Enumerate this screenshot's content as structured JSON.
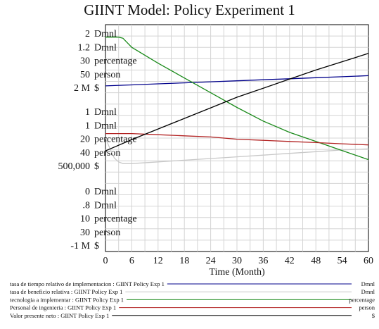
{
  "chart_data": {
    "type": "line",
    "title": "GIINT Model: Policy Experiment 1",
    "xlabel": "Time (Month)",
    "x_ticks": [
      0,
      6,
      12,
      18,
      24,
      30,
      36,
      42,
      48,
      54,
      60
    ],
    "xlim": [
      0,
      60
    ],
    "grid": true,
    "axes": [
      {
        "unit": "Dmnl",
        "tick_labels": [
          "2",
          "1",
          "0"
        ],
        "range": [
          0,
          2
        ]
      },
      {
        "unit": "Dmnl",
        "tick_labels": [
          "1.2",
          "1",
          ".8"
        ],
        "range": [
          0.8,
          1.2
        ]
      },
      {
        "unit": "percentage",
        "tick_labels": [
          "30",
          "20",
          "10"
        ],
        "range": [
          10,
          30
        ]
      },
      {
        "unit": "person",
        "tick_labels": [
          "50",
          "40",
          "30"
        ],
        "range": [
          30,
          50
        ]
      },
      {
        "unit": "$",
        "tick_labels": [
          "2 M",
          "500,000",
          "-1 M"
        ],
        "range": [
          -1000000,
          2000000
        ]
      }
    ],
    "series": [
      {
        "name": "tasa de tiempo relativo de implementacion : GIINT Policy Exp 1",
        "unit": "Dmnl",
        "axis": 0,
        "color": "#00008b",
        "x": [
          0,
          6,
          12,
          18,
          24,
          30,
          36,
          42,
          48,
          54,
          60
        ],
        "y": [
          1.46,
          1.469,
          1.478,
          1.487,
          1.496,
          1.505,
          1.514,
          1.523,
          1.532,
          1.541,
          1.55
        ]
      },
      {
        "name": "tasa de beneficio relativa : GIINT Policy Exp 1",
        "unit": "Dmnl",
        "axis": 1,
        "color": "#c8c8c8",
        "x": [
          0,
          1,
          2,
          3,
          4,
          6,
          12,
          18,
          24,
          30,
          36,
          42,
          48,
          54,
          60
        ],
        "y": [
          1.0,
          0.982,
          0.965,
          0.958,
          0.955,
          0.955,
          0.958,
          0.961,
          0.964,
          0.967,
          0.97,
          0.973,
          0.976,
          0.979,
          0.981
        ]
      },
      {
        "name": "tecnologia a implementar : GIINT Policy Exp 1",
        "unit": "percentage",
        "axis": 2,
        "color": "#1a8a1a",
        "x": [
          0,
          1,
          2,
          3,
          4,
          6,
          12,
          18,
          24,
          30,
          36,
          42,
          48,
          54,
          60
        ],
        "y": [
          28.9,
          28.9,
          28.9,
          28.9,
          28.8,
          28.0,
          26.6,
          25.3,
          24.0,
          22.7,
          21.5,
          20.5,
          19.7,
          18.9,
          18.1
        ]
      },
      {
        "name": "Personal de ingenieria : GIINT Policy Exp 1",
        "unit": "person",
        "axis": 3,
        "color": "#b22222",
        "x": [
          0,
          1,
          2,
          3,
          4,
          6,
          12,
          18,
          24,
          30,
          36,
          42,
          48,
          54,
          60
        ],
        "y": [
          40.4,
          40.4,
          40.4,
          40.4,
          40.4,
          40.4,
          40.3,
          40.2,
          40.1,
          39.9,
          39.8,
          39.7,
          39.6,
          39.5,
          39.4
        ]
      },
      {
        "name": "Valor presente neto : GIINT Policy Exp 1",
        "unit": "$",
        "axis": 4,
        "color": "#000000",
        "x": [
          0,
          6,
          12,
          18,
          24,
          30,
          36,
          42,
          48,
          54,
          60
        ],
        "y": [
          330000,
          480000,
          620000,
          760000,
          900000,
          1040000,
          1160000,
          1280000,
          1400000,
          1510000,
          1620000
        ]
      }
    ]
  }
}
